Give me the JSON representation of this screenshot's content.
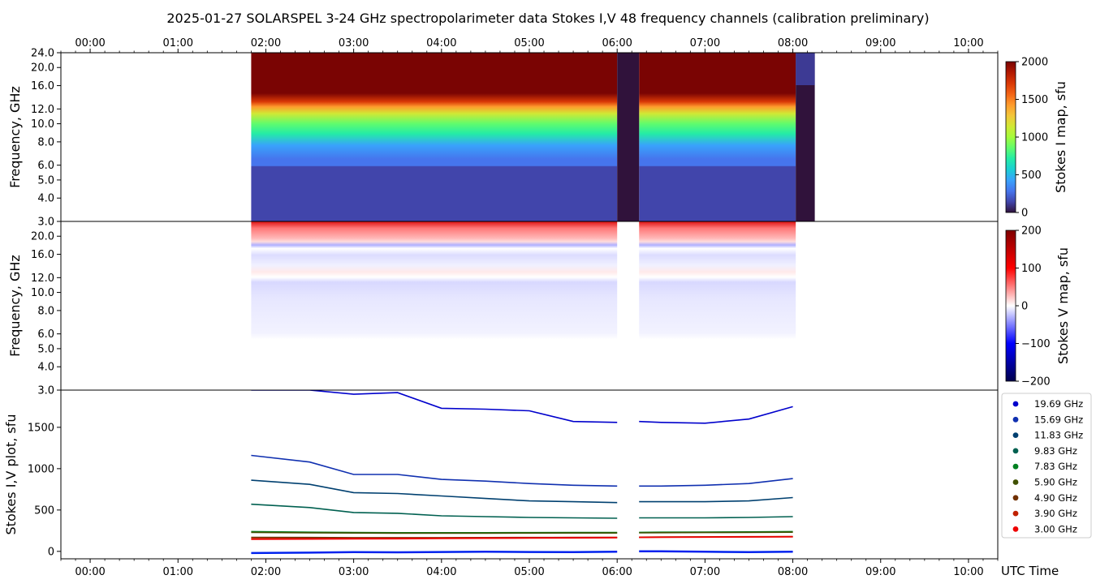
{
  "chart_data": [
    {
      "panel": "stokes-i-map",
      "type": "heatmap",
      "title": "2025-01-27  SOLARSPEL  3-24 GHz spectropolarimeter data   Stokes I,V   48 frequency channels   (calibration preliminary)",
      "ylabel": "Frequency, GHz",
      "colorbar_label": "Stokes I map, sfu",
      "colorbar_range": [
        0,
        2000
      ],
      "colorbar_ticks": [
        "0",
        "500",
        "1000",
        "1500",
        "2000"
      ],
      "ylim": [
        3.0,
        24.0
      ],
      "y_scale": "log",
      "y_ticks": [
        "3.0",
        "4.0",
        "5.0",
        "6.0",
        "8.0",
        "10.0",
        "12.0",
        "16.0",
        "20.0",
        "24.0"
      ],
      "x_ticks_top": [
        "00:00",
        "01:00",
        "02:00",
        "03:00",
        "04:00",
        "05:00",
        "06:00",
        "07:00",
        "08:00",
        "09:00",
        "10:00"
      ],
      "xlim": [
        "-00:20",
        "10:20"
      ],
      "data_intervals": [
        [
          "01:50",
          "06:00"
        ],
        [
          "06:15",
          "08:02"
        ]
      ],
      "gaps": [
        [
          "06:00",
          "06:15"
        ],
        [
          "08:02",
          "08:15"
        ]
      ],
      "colormap": [
        "#30123b",
        "#4145ab",
        "#4675ed",
        "#39a2fc",
        "#1bcfd4",
        "#24eca6",
        "#61fc6c",
        "#a4fc3b",
        "#d1e834",
        "#f3c63a",
        "#fe9b2d",
        "#f36315",
        "#d93806",
        "#b11901",
        "#7a0403"
      ]
    },
    {
      "panel": "stokes-v-map",
      "type": "heatmap",
      "ylabel": "Frequency, GHz",
      "colorbar_label": "Stokes V map, sfu",
      "colorbar_range": [
        -200,
        200
      ],
      "colorbar_ticks": [
        "−200",
        "−100",
        "0",
        "100",
        "200"
      ],
      "ylim": [
        3.0,
        24.0
      ],
      "y_scale": "log",
      "y_ticks": [
        "3.0",
        "4.0",
        "5.0",
        "6.0",
        "8.0",
        "10.0",
        "12.0",
        "16.0",
        "20.0"
      ],
      "colormap": [
        "#00004c",
        "#0000ff",
        "#ffffff",
        "#ff0000",
        "#7f0000"
      ]
    },
    {
      "panel": "stokes-iv-plot",
      "type": "line",
      "ylabel": "Stokes I,V plot, sfu",
      "xlabel": "UTC Time",
      "ylim": [
        -90,
        1950
      ],
      "y_ticks": [
        0,
        500,
        1000,
        1500
      ],
      "x_ticks": [
        "00:00",
        "01:00",
        "02:00",
        "03:00",
        "04:00",
        "05:00",
        "06:00",
        "07:00",
        "08:00",
        "09:00",
        "10:00"
      ],
      "x": [
        "01:50",
        "02:30",
        "03:00",
        "03:30",
        "04:00",
        "04:30",
        "05:00",
        "05:30",
        "06:00",
        "06:15",
        "06:30",
        "07:00",
        "07:30",
        "08:00"
      ],
      "series": [
        {
          "name": "19.69 GHz",
          "color": "#0000cc",
          "values": [
            1950,
            1950,
            1900,
            1920,
            1730,
            1720,
            1700,
            1570,
            1560,
            1570,
            1560,
            1550,
            1600,
            1750
          ]
        },
        {
          "name": "15.69 GHz",
          "color": "#1030b0",
          "values": [
            1160,
            1080,
            930,
            930,
            870,
            850,
            820,
            800,
            790,
            790,
            790,
            800,
            820,
            880
          ]
        },
        {
          "name": "11.83 GHz",
          "color": "#004070",
          "values": [
            860,
            810,
            710,
            700,
            670,
            640,
            610,
            600,
            590,
            600,
            600,
            600,
            610,
            650
          ]
        },
        {
          "name": "9.83 GHz",
          "color": "#006050",
          "values": [
            570,
            530,
            470,
            460,
            430,
            420,
            410,
            405,
            400,
            405,
            405,
            405,
            410,
            420
          ]
        },
        {
          "name": "7.83 GHz",
          "color": "#008020",
          "values": [
            240,
            232,
            228,
            226,
            226,
            226,
            227,
            228,
            228,
            230,
            232,
            234,
            236,
            240
          ]
        },
        {
          "name": "5.90 GHz",
          "color": "#405000",
          "values": [
            230,
            225,
            222,
            220,
            220,
            220,
            221,
            222,
            222,
            224,
            226,
            228,
            230,
            232
          ]
        },
        {
          "name": "4.90 GHz",
          "color": "#703000",
          "values": [
            170,
            168,
            166,
            166,
            166,
            167,
            168,
            168,
            168,
            170,
            172,
            174,
            176,
            178
          ]
        },
        {
          "name": "3.90 GHz",
          "color": "#c02000",
          "values": [
            155,
            156,
            158,
            160,
            162,
            164,
            166,
            168,
            170,
            172,
            174,
            176,
            178,
            180
          ]
        },
        {
          "name": "3.00 GHz",
          "color": "#ee0000",
          "values": [
            145,
            148,
            150,
            152,
            155,
            158,
            160,
            162,
            164,
            168,
            170,
            172,
            174,
            176
          ]
        },
        {
          "name": "",
          "color": "#0022ee",
          "values": [
            -20,
            -15,
            -10,
            -12,
            -8,
            -5,
            -8,
            -10,
            -5,
            0,
            0,
            -5,
            -10,
            -5
          ]
        }
      ]
    }
  ]
}
